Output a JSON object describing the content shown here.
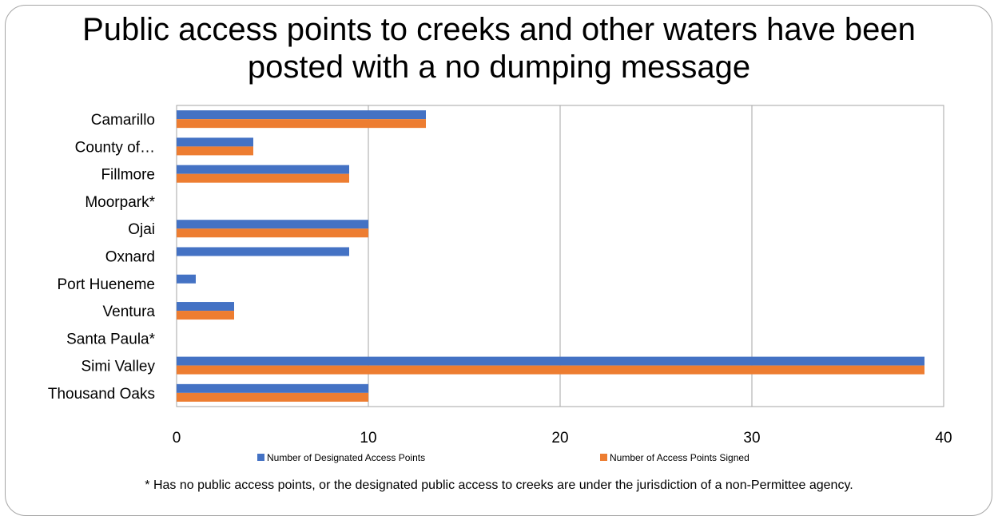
{
  "chart_data": {
    "type": "bar",
    "orientation": "horizontal",
    "title_lines": [
      "Public access points to creeks and other waters have been",
      "posted with a no dumping message"
    ],
    "categories": [
      "Camarillo",
      "County of…",
      "Fillmore",
      "Moorpark*",
      "Ojai",
      "Oxnard",
      "Port Hueneme",
      "Ventura",
      "Santa Paula*",
      "Simi Valley",
      "Thousand Oaks"
    ],
    "series": [
      {
        "name": "Number of Designated Access Points",
        "color": "#4472c4",
        "values": [
          13,
          4,
          9,
          0,
          10,
          9,
          1,
          3,
          0,
          39,
          10
        ]
      },
      {
        "name": "Number of Access Points Signed",
        "color": "#ed7d31",
        "values": [
          13,
          4,
          9,
          0,
          10,
          0,
          0,
          3,
          0,
          39,
          10
        ]
      }
    ],
    "xlim": [
      0,
      40
    ],
    "xticks": [
      0,
      10,
      20,
      30,
      40
    ],
    "grid": true,
    "legend_position": "bottom",
    "footnote": "* Has no public access points, or the designated public access to creeks are under the jurisdiction of a non-Permittee agency."
  }
}
